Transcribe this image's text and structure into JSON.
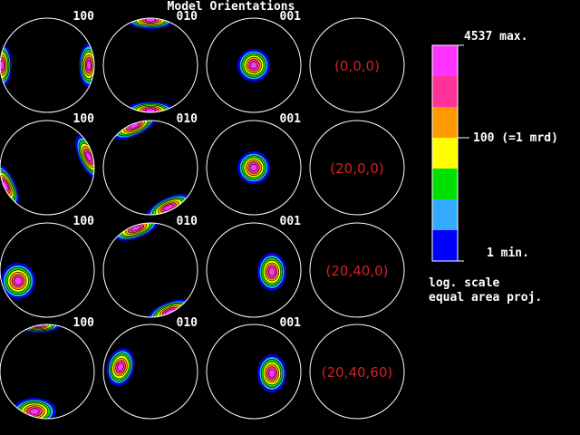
{
  "title": "Model Orientations",
  "rows": [
    {
      "label": "(0,0,0)",
      "poles": [
        "100",
        "010",
        "001"
      ]
    },
    {
      "label": "(20,0,0)",
      "poles": [
        "100",
        "010",
        "001"
      ]
    },
    {
      "label": "(20,40,0)",
      "poles": [
        "100",
        "010",
        "001"
      ]
    },
    {
      "label": "(20,40,60)",
      "poles": [
        "100",
        "010",
        "001"
      ]
    }
  ],
  "legend": {
    "max": "4537 max.",
    "mid": "100 (=1 mrd)",
    "min": "1 min.",
    "notes": [
      "log. scale",
      "equal area proj."
    ]
  }
}
